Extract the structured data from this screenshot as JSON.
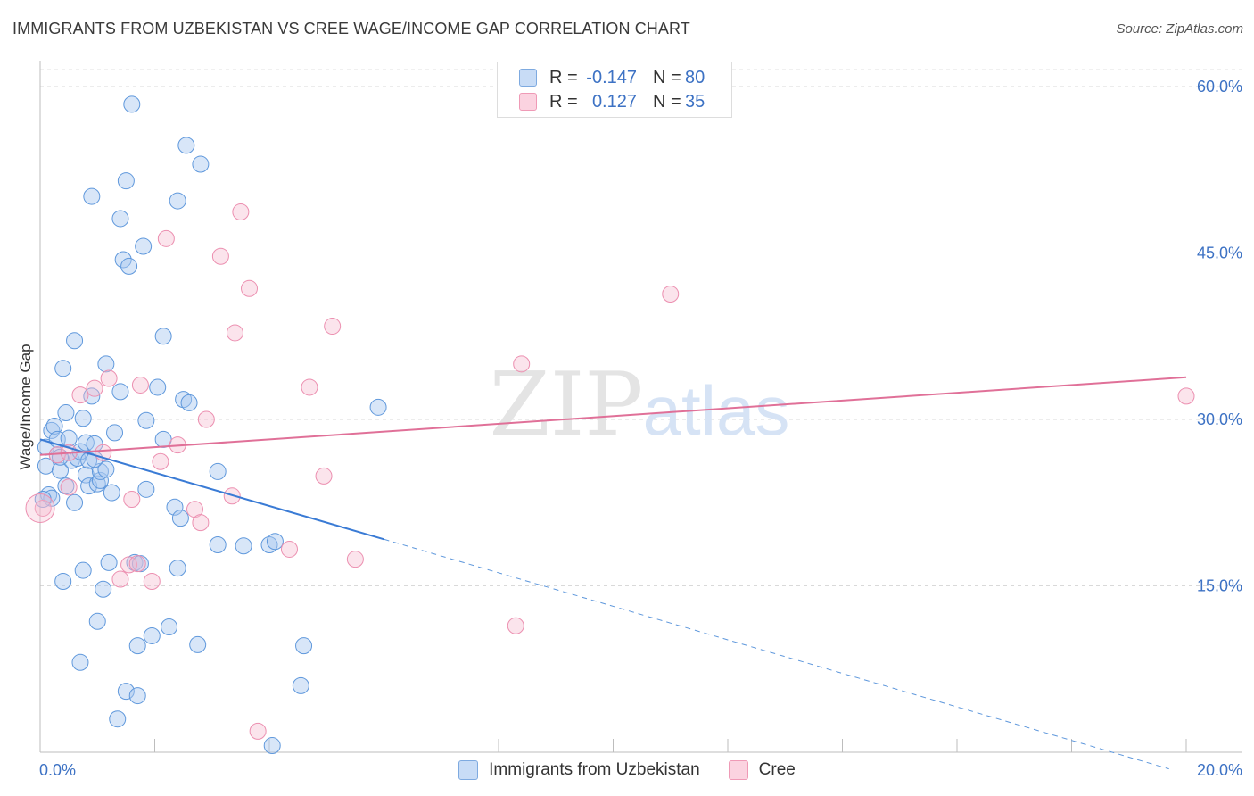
{
  "header": {
    "title": "IMMIGRANTS FROM UZBEKISTAN VS CREE WAGE/INCOME GAP CORRELATION CHART",
    "source": "Source: ZipAtlas.com"
  },
  "watermark": {
    "zip": "ZIP",
    "atlas": "atlas"
  },
  "stats": [
    {
      "r_label": "R =",
      "r_value": "-0.147",
      "n_label": "N =",
      "n_value": "80",
      "color": "#a8c8f0"
    },
    {
      "r_label": "R =",
      "r_value": "0.127",
      "n_label": "N =",
      "n_value": "35",
      "color": "#f6bcd0"
    }
  ],
  "legend": [
    {
      "label": "Immigrants from Uzbekistan",
      "color": "#a8c8f0"
    },
    {
      "label": "Cree",
      "color": "#f6bcd0"
    }
  ],
  "chart_data": {
    "type": "scatter",
    "title": "IMMIGRANTS FROM UZBEKISTAN VS CREE WAGE/INCOME GAP CORRELATION CHART",
    "xlabel": "",
    "ylabel": "Wage/Income Gap",
    "xlim": [
      0,
      20
    ],
    "ylim": [
      0,
      60
    ],
    "x_tick_labels": [
      "0.0%",
      "20.0%"
    ],
    "y_ticks": [
      15,
      30,
      45,
      60
    ],
    "y_tick_labels": [
      "15.0%",
      "30.0%",
      "45.0%",
      "60.0%"
    ],
    "grid": true,
    "colors": {
      "uzbekistan": "#4a86d4",
      "cree": "#e07098",
      "axis_text": "#3d72c4"
    },
    "series": [
      {
        "name": "Immigrants from Uzbekistan",
        "r": -0.147,
        "n": 80,
        "trend": {
          "x0": 0,
          "y0": 28.2,
          "x1": 6.0,
          "y1": 19.2,
          "dash_x1": 19.7,
          "dash_y1": -1.5
        },
        "points": [
          [
            0.1,
            27.5
          ],
          [
            0.1,
            25.8
          ],
          [
            0.15,
            23.2
          ],
          [
            0.2,
            22.9
          ],
          [
            0.2,
            29.0
          ],
          [
            0.25,
            29.4
          ],
          [
            0.3,
            28.2
          ],
          [
            0.3,
            26.8
          ],
          [
            0.35,
            25.4
          ],
          [
            0.4,
            34.6
          ],
          [
            0.4,
            15.4
          ],
          [
            0.45,
            24.0
          ],
          [
            0.45,
            30.6
          ],
          [
            0.5,
            28.3
          ],
          [
            0.55,
            26.3
          ],
          [
            0.6,
            37.1
          ],
          [
            0.6,
            22.5
          ],
          [
            0.65,
            26.5
          ],
          [
            0.7,
            27.1
          ],
          [
            0.7,
            8.1
          ],
          [
            0.75,
            30.1
          ],
          [
            0.75,
            16.4
          ],
          [
            0.8,
            27.9
          ],
          [
            0.8,
            25.0
          ],
          [
            0.85,
            26.3
          ],
          [
            0.85,
            24.0
          ],
          [
            0.9,
            50.1
          ],
          [
            0.9,
            32.1
          ],
          [
            0.95,
            27.8
          ],
          [
            1.0,
            24.2
          ],
          [
            1.0,
            11.8
          ],
          [
            1.05,
            24.5
          ],
          [
            1.05,
            25.3
          ],
          [
            1.1,
            14.7
          ],
          [
            1.15,
            25.5
          ],
          [
            1.15,
            35.0
          ],
          [
            1.2,
            17.1
          ],
          [
            1.25,
            23.4
          ],
          [
            1.3,
            28.8
          ],
          [
            1.35,
            3.0
          ],
          [
            1.4,
            32.5
          ],
          [
            1.4,
            48.1
          ],
          [
            1.45,
            44.4
          ],
          [
            1.5,
            51.5
          ],
          [
            1.5,
            5.5
          ],
          [
            1.55,
            43.8
          ],
          [
            1.6,
            58.4
          ],
          [
            1.65,
            17.1
          ],
          [
            1.7,
            9.6
          ],
          [
            1.7,
            5.1
          ],
          [
            1.75,
            17.0
          ],
          [
            1.8,
            45.6
          ],
          [
            1.85,
            29.9
          ],
          [
            1.85,
            23.7
          ],
          [
            1.95,
            10.5
          ],
          [
            2.05,
            32.9
          ],
          [
            2.15,
            28.2
          ],
          [
            2.15,
            37.5
          ],
          [
            2.25,
            11.3
          ],
          [
            2.35,
            22.1
          ],
          [
            2.4,
            49.7
          ],
          [
            2.4,
            16.6
          ],
          [
            2.45,
            21.1
          ],
          [
            2.5,
            31.8
          ],
          [
            2.55,
            54.7
          ],
          [
            2.6,
            31.5
          ],
          [
            2.75,
            9.7
          ],
          [
            2.8,
            53.0
          ],
          [
            3.1,
            25.3
          ],
          [
            3.1,
            18.7
          ],
          [
            3.55,
            18.6
          ],
          [
            4.0,
            18.7
          ],
          [
            4.1,
            19.0
          ],
          [
            4.05,
            0.6
          ],
          [
            4.55,
            6.0
          ],
          [
            4.6,
            9.6
          ],
          [
            5.9,
            31.1
          ],
          [
            0.05,
            22.8
          ],
          [
            0.35,
            26.6
          ],
          [
            0.95,
            26.4
          ]
        ]
      },
      {
        "name": "Cree",
        "r": 0.127,
        "n": 35,
        "trend": {
          "x0": 0,
          "y0": 26.8,
          "x1": 20.0,
          "y1": 33.8
        },
        "points": [
          [
            0.05,
            22.0
          ],
          [
            0.3,
            26.8
          ],
          [
            0.5,
            27.0
          ],
          [
            0.5,
            23.9
          ],
          [
            0.7,
            32.2
          ],
          [
            0.95,
            32.8
          ],
          [
            1.1,
            27.0
          ],
          [
            1.2,
            33.7
          ],
          [
            1.4,
            15.6
          ],
          [
            1.55,
            16.9
          ],
          [
            1.6,
            22.8
          ],
          [
            1.7,
            17.0
          ],
          [
            1.75,
            33.1
          ],
          [
            1.95,
            15.4
          ],
          [
            2.1,
            26.2
          ],
          [
            2.2,
            46.3
          ],
          [
            2.4,
            27.7
          ],
          [
            2.7,
            21.9
          ],
          [
            2.8,
            20.7
          ],
          [
            2.9,
            30.0
          ],
          [
            3.15,
            44.7
          ],
          [
            3.35,
            23.1
          ],
          [
            3.4,
            37.8
          ],
          [
            3.5,
            48.7
          ],
          [
            3.65,
            41.8
          ],
          [
            3.8,
            1.9
          ],
          [
            4.35,
            18.3
          ],
          [
            4.7,
            32.9
          ],
          [
            4.95,
            24.9
          ],
          [
            5.1,
            38.4
          ],
          [
            5.5,
            17.4
          ],
          [
            8.3,
            11.4
          ],
          [
            8.4,
            35.0
          ],
          [
            11.0,
            41.3
          ],
          [
            20.0,
            32.1
          ]
        ]
      }
    ]
  }
}
